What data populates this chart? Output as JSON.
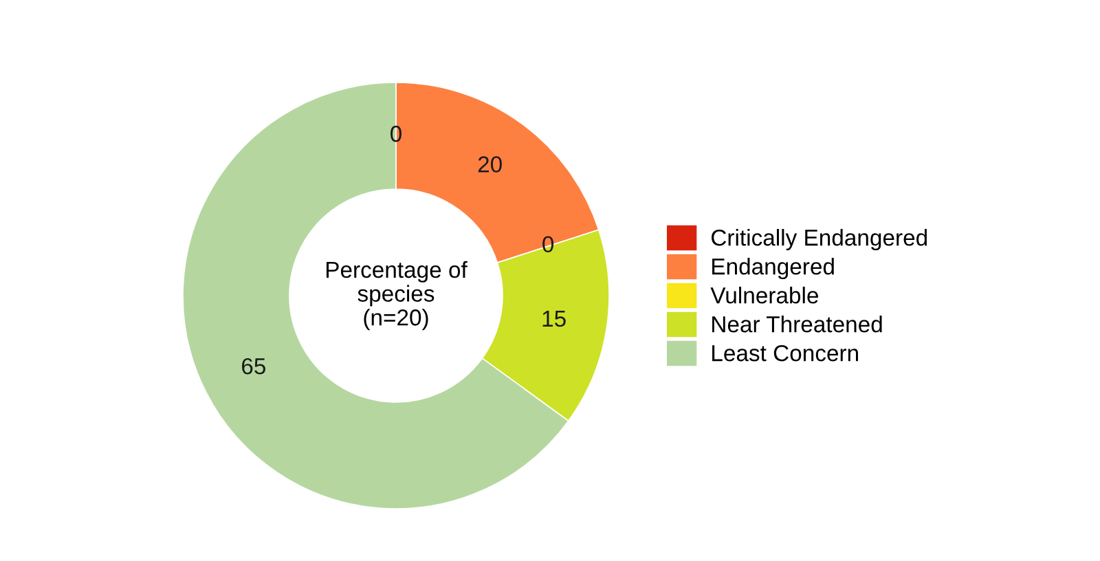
{
  "chart_data": {
    "type": "donut",
    "annotations": [
      "Percentage of\nspecies\n(n=20)"
    ],
    "categories": [
      "Critically Endangered",
      "Endangered",
      "Vulnerable",
      "Near Threatened",
      "Least Concern"
    ],
    "values": [
      0,
      20,
      0,
      15,
      65
    ],
    "value_labels": [
      "0",
      "20",
      "0",
      "15",
      "65"
    ],
    "colors": [
      "#d9230f",
      "#fd8041",
      "#f8e51a",
      "#cde126",
      "#b5d79f"
    ],
    "legend": "right"
  }
}
